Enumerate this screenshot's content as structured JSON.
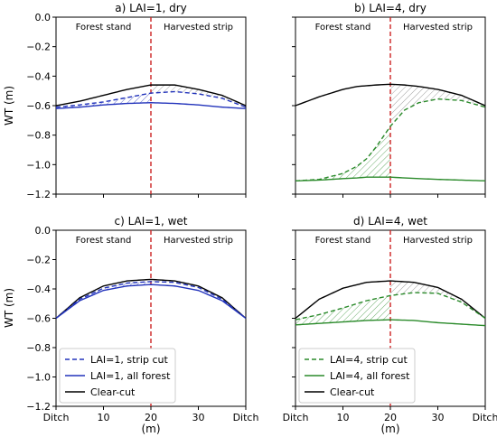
{
  "figure": {
    "ylabel": "WT (m)",
    "xlabel": "(m)"
  },
  "chart_data": [
    {
      "type": "line",
      "title": "a) LAI=1, dry",
      "region_left": "Forest stand",
      "region_right": "Harvested strip",
      "cut_line_x": 20,
      "ylim": [
        -1.2,
        0.0
      ],
      "xlim": [
        0,
        40
      ],
      "xticks": [
        {
          "x": 0,
          "label": "Ditch"
        },
        {
          "x": 10,
          "label": "10"
        },
        {
          "x": 20,
          "label": "20"
        },
        {
          "x": 30,
          "label": "30"
        },
        {
          "x": 40,
          "label": "Ditch"
        }
      ],
      "yticks": [
        0.0,
        -0.2,
        -0.4,
        -0.6,
        -0.8,
        -1.0,
        -1.2
      ],
      "ytick_labels": [
        "0.0",
        "−0.2",
        "−0.4",
        "−0.6",
        "−0.8",
        "−1.0",
        "−1.2"
      ],
      "x": [
        0,
        5,
        10,
        15,
        20,
        25,
        30,
        35,
        40
      ],
      "series": [
        {
          "values": [
            -0.6,
            -0.57,
            -0.53,
            -0.49,
            -0.46,
            -0.46,
            -0.49,
            -0.53,
            -0.6
          ],
          "color": "#000000",
          "style": "solid"
        },
        {
          "values": [
            -0.61,
            -0.595,
            -0.575,
            -0.545,
            -0.515,
            -0.505,
            -0.52,
            -0.55,
            -0.61
          ],
          "color": "#2233bb",
          "style": "dashed"
        },
        {
          "values": [
            -0.62,
            -0.61,
            -0.595,
            -0.585,
            -0.58,
            -0.585,
            -0.595,
            -0.61,
            -0.62
          ],
          "color": "#2233bb",
          "style": "solid"
        }
      ],
      "legend": null
    },
    {
      "type": "line",
      "title": "b) LAI=4, dry",
      "region_left": "Forest stand",
      "region_right": "Harvested strip",
      "cut_line_x": 20,
      "ylim": [
        -1.2,
        0.0
      ],
      "xlim": [
        0,
        40
      ],
      "xticks": [
        {
          "x": 0,
          "label": "Ditch"
        },
        {
          "x": 10,
          "label": "10"
        },
        {
          "x": 20,
          "label": "20"
        },
        {
          "x": 30,
          "label": "30"
        },
        {
          "x": 40,
          "label": "Ditch"
        }
      ],
      "yticks": [
        0.0,
        -0.2,
        -0.4,
        -0.6,
        -0.8,
        -1.0,
        -1.2
      ],
      "ytick_labels": [],
      "x": [
        0,
        5,
        10,
        13,
        15,
        17,
        20,
        23,
        26,
        30,
        35,
        40
      ],
      "series": [
        {
          "values": [
            -0.6,
            -0.54,
            -0.49,
            -0.47,
            -0.465,
            -0.46,
            -0.455,
            -0.46,
            -0.47,
            -0.49,
            -0.53,
            -0.6
          ],
          "color": "#000000",
          "style": "solid"
        },
        {
          "values": [
            -1.11,
            -1.1,
            -1.06,
            -1.01,
            -0.96,
            -0.88,
            -0.74,
            -0.63,
            -0.58,
            -0.555,
            -0.565,
            -0.61
          ],
          "color": "#2a8a2a",
          "style": "dashed"
        },
        {
          "values": [
            -1.11,
            -1.105,
            -1.095,
            -1.09,
            -1.085,
            -1.085,
            -1.085,
            -1.09,
            -1.095,
            -1.1,
            -1.105,
            -1.11
          ],
          "color": "#2a8a2a",
          "style": "solid"
        }
      ],
      "legend": null
    },
    {
      "type": "line",
      "title": "c) LAI=1, wet",
      "region_left": "Forest stand",
      "region_right": "Harvested strip",
      "cut_line_x": 20,
      "ylim": [
        -1.2,
        0.0
      ],
      "xlim": [
        0,
        40
      ],
      "xticks": [
        {
          "x": 0,
          "label": "Ditch"
        },
        {
          "x": 10,
          "label": "10"
        },
        {
          "x": 20,
          "label": "20"
        },
        {
          "x": 30,
          "label": "30"
        },
        {
          "x": 40,
          "label": "Ditch"
        }
      ],
      "yticks": [
        0.0,
        -0.2,
        -0.4,
        -0.6,
        -0.8,
        -1.0,
        -1.2
      ],
      "ytick_labels": [
        "0.0",
        "−0.2",
        "−0.4",
        "−0.6",
        "−0.8",
        "−1.0",
        "−1.2"
      ],
      "x": [
        0,
        5,
        10,
        15,
        20,
        25,
        30,
        35,
        40
      ],
      "series": [
        {
          "values": [
            -0.6,
            -0.46,
            -0.38,
            -0.345,
            -0.335,
            -0.345,
            -0.38,
            -0.46,
            -0.6
          ],
          "color": "#000000",
          "style": "solid"
        },
        {
          "values": [
            -0.6,
            -0.47,
            -0.395,
            -0.36,
            -0.35,
            -0.355,
            -0.39,
            -0.47,
            -0.6
          ],
          "color": "#2233bb",
          "style": "dashed"
        },
        {
          "values": [
            -0.6,
            -0.48,
            -0.41,
            -0.38,
            -0.37,
            -0.38,
            -0.41,
            -0.48,
            -0.6
          ],
          "color": "#2233bb",
          "style": "solid"
        }
      ],
      "legend": {
        "placement": "lower-left",
        "entries": [
          {
            "label": "LAI=1, strip cut",
            "color": "#2233bb",
            "style": "dashed"
          },
          {
            "label": "LAI=1, all forest",
            "color": "#2233bb",
            "style": "solid"
          },
          {
            "label": "Clear-cut",
            "color": "#000000",
            "style": "solid"
          }
        ]
      }
    },
    {
      "type": "line",
      "title": "d) LAI=4, wet",
      "region_left": "Forest stand",
      "region_right": "Harvested strip",
      "cut_line_x": 20,
      "ylim": [
        -1.2,
        0.0
      ],
      "xlim": [
        0,
        40
      ],
      "xticks": [
        {
          "x": 0,
          "label": "Ditch"
        },
        {
          "x": 10,
          "label": "10"
        },
        {
          "x": 20,
          "label": "20"
        },
        {
          "x": 30,
          "label": "30"
        },
        {
          "x": 40,
          "label": "Ditch"
        }
      ],
      "yticks": [
        0.0,
        -0.2,
        -0.4,
        -0.6,
        -0.8,
        -1.0,
        -1.2
      ],
      "ytick_labels": [],
      "x": [
        0,
        5,
        10,
        15,
        20,
        25,
        30,
        35,
        40
      ],
      "series": [
        {
          "values": [
            -0.6,
            -0.47,
            -0.395,
            -0.355,
            -0.345,
            -0.355,
            -0.39,
            -0.47,
            -0.6
          ],
          "color": "#000000",
          "style": "solid"
        },
        {
          "values": [
            -0.61,
            -0.575,
            -0.53,
            -0.48,
            -0.445,
            -0.425,
            -0.43,
            -0.49,
            -0.6
          ],
          "color": "#2a8a2a",
          "style": "dashed"
        },
        {
          "values": [
            -0.645,
            -0.635,
            -0.625,
            -0.615,
            -0.61,
            -0.615,
            -0.63,
            -0.64,
            -0.65
          ],
          "color": "#2a8a2a",
          "style": "solid"
        }
      ],
      "legend": {
        "placement": "lower-left",
        "entries": [
          {
            "label": "LAI=4, strip cut",
            "color": "#2a8a2a",
            "style": "dashed"
          },
          {
            "label": "LAI=4, all forest",
            "color": "#2a8a2a",
            "style": "solid"
          },
          {
            "label": "Clear-cut",
            "color": "#000000",
            "style": "solid"
          }
        ]
      }
    }
  ]
}
